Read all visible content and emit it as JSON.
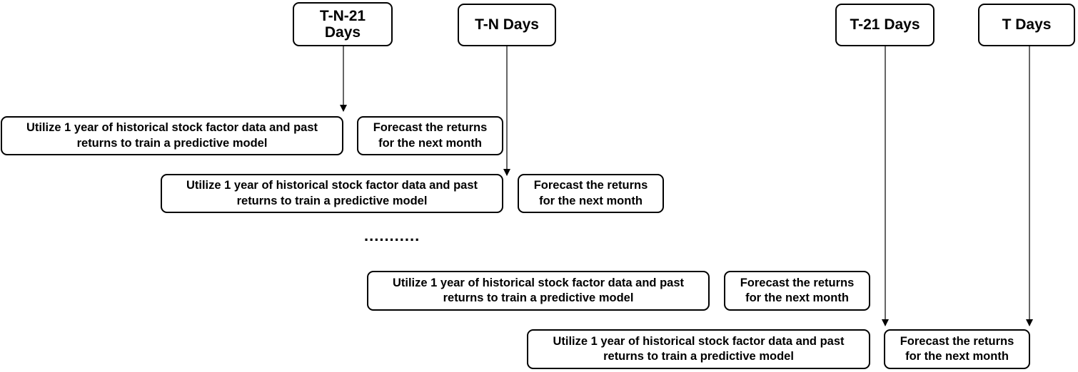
{
  "time_labels": [
    {
      "id": "t-n-21",
      "text": "T-N-21 Days"
    },
    {
      "id": "t-n",
      "text": "T-N Days"
    },
    {
      "id": "t-21",
      "text": "T-21 Days"
    },
    {
      "id": "t",
      "text": "T Days"
    }
  ],
  "windows": [
    {
      "train": "Utilize 1 year of historical stock factor data and past returns to train a predictive model",
      "forecast": "Forecast the returns for the next month"
    },
    {
      "train": "Utilize 1 year of historical stock factor data and past returns to train a predictive model",
      "forecast": "Forecast the returns for the next month"
    },
    {
      "train": "Utilize 1 year of historical stock factor data and past returns to train a predictive model",
      "forecast": "Forecast the returns for the next month"
    },
    {
      "train": "Utilize 1 year of historical stock factor data and past returns to train a predictive model",
      "forecast": "Forecast the returns for the next month"
    }
  ],
  "ellipsis": "..........."
}
